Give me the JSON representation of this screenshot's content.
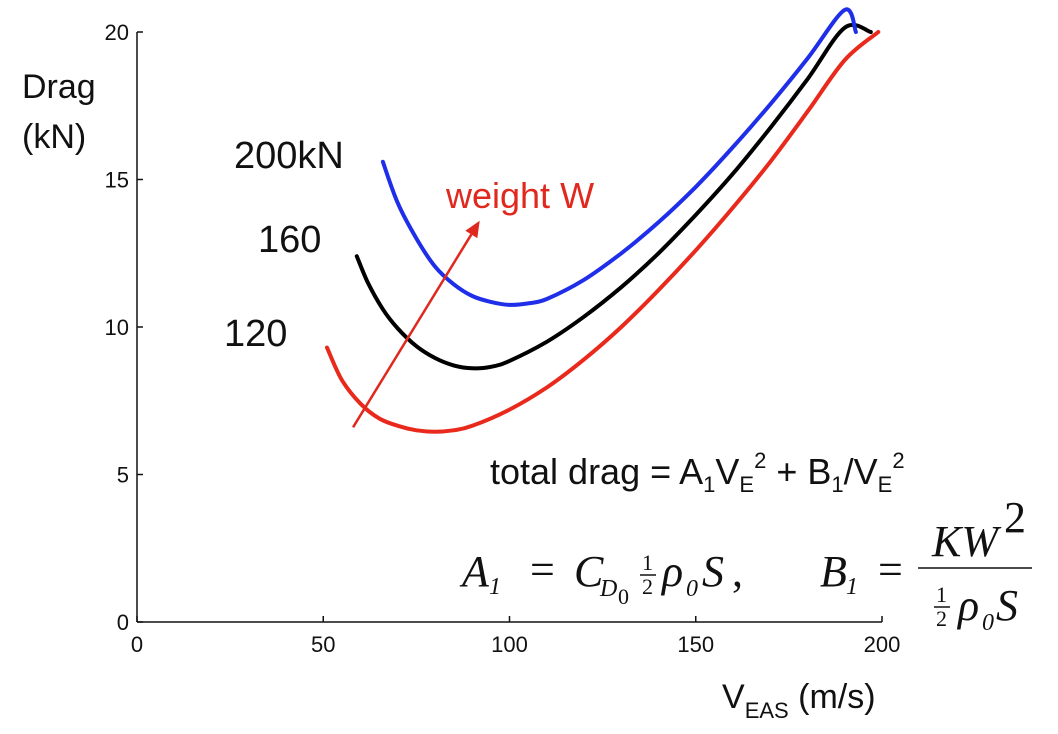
{
  "chart_data": {
    "type": "line",
    "title": "",
    "xlabel": {
      "main": "V",
      "sub": "EAS",
      "unit": " (m/s)"
    },
    "ylabel": [
      "Drag",
      "(kN)"
    ],
    "xlim": [
      0,
      200
    ],
    "ylim": [
      0,
      20
    ],
    "xticks": [
      0,
      50,
      100,
      150,
      200
    ],
    "yticks": [
      0,
      5,
      10,
      15,
      20
    ],
    "grid": false,
    "series": [
      {
        "name": "120",
        "label": "120",
        "color": "#e8291b",
        "weight_kN": 120,
        "x": [
          51,
          55,
          60,
          65,
          70,
          75,
          80,
          85,
          90,
          100,
          110,
          120,
          130,
          140,
          150,
          160,
          170,
          180,
          190,
          199
        ],
        "y": [
          9.3,
          8.2,
          7.4,
          6.9,
          6.65,
          6.5,
          6.45,
          6.5,
          6.65,
          7.2,
          7.95,
          8.9,
          10.0,
          11.25,
          12.6,
          14.05,
          15.6,
          17.3,
          19.05,
          20.0
        ]
      },
      {
        "name": "160",
        "label": "160",
        "color": "#000000",
        "weight_kN": 160,
        "x": [
          59,
          62,
          66,
          70,
          75,
          80,
          85,
          90,
          95,
          100,
          110,
          120,
          130,
          140,
          150,
          160,
          170,
          180,
          190,
          197
        ],
        "y": [
          12.4,
          11.5,
          10.6,
          9.95,
          9.35,
          8.95,
          8.7,
          8.6,
          8.65,
          8.85,
          9.5,
          10.35,
          11.35,
          12.5,
          13.8,
          15.2,
          16.75,
          18.4,
          20.15,
          20.0
        ]
      },
      {
        "name": "200kN",
        "label": "200kN",
        "color": "#1f2ee8",
        "weight_kN": 200,
        "x": [
          66,
          70,
          75,
          80,
          85,
          90,
          95,
          100,
          105,
          110,
          120,
          130,
          140,
          150,
          160,
          170,
          180,
          190,
          193
        ],
        "y": [
          15.6,
          14.2,
          13.0,
          12.05,
          11.45,
          11.05,
          10.85,
          10.75,
          10.8,
          10.95,
          11.6,
          12.5,
          13.55,
          14.75,
          16.1,
          17.55,
          19.1,
          20.75,
          20.0
        ]
      }
    ],
    "annotations": {
      "arrow_label": "weight W",
      "arrow_color": "#e0281e",
      "arrow": {
        "from": [
          58,
          6.6
        ],
        "to": [
          92,
          13.6
        ]
      },
      "equation": {
        "prefix": "total drag = A",
        "sub1": "1",
        "v1": "V",
        "subE1": "E",
        "sup1": "2",
        "mid": " + B",
        "sub2": "1",
        "slash": "/V",
        "subE2": "E",
        "sup2": "2"
      },
      "formula": {
        "a": "A",
        "a_sub": "1",
        "eq": "=",
        "c": "C",
        "c_sub": "D",
        "c_subsub": "0",
        "half_num": "1",
        "half_den": "2",
        "rho": "ρ",
        "rho_sub": "0",
        "s": "S",
        "comma": ",",
        "b": "B",
        "b_sub": "1",
        "kw": "KW",
        "kw_sup": "2"
      }
    }
  }
}
